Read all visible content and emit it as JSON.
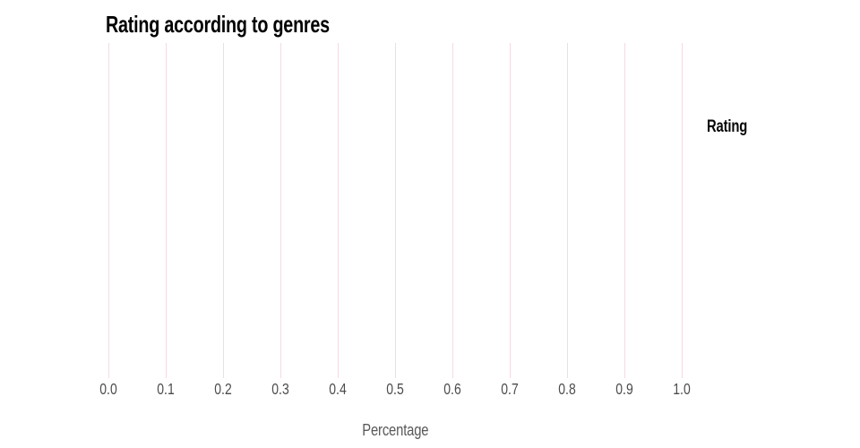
{
  "chart_data": {
    "type": "bar",
    "title": "Rating according to genres",
    "xlabel": "Percentage",
    "ylabel": "",
    "xlim": [
      0.0,
      1.0
    ],
    "x_ticks": [
      "0.0",
      "0.1",
      "0.2",
      "0.3",
      "0.4",
      "0.5",
      "0.6",
      "0.7",
      "0.8",
      "0.9",
      "1.0"
    ],
    "legend_title": "Rating",
    "legend_position": "right",
    "series": [],
    "grid": "vertical-only",
    "colors": {
      "background": "#ffffff",
      "gridline": "#f2dce3",
      "title": "#000000",
      "tick_label": "#4c4c4c",
      "axis_label": "#595959",
      "legend_title": "#070707"
    }
  }
}
